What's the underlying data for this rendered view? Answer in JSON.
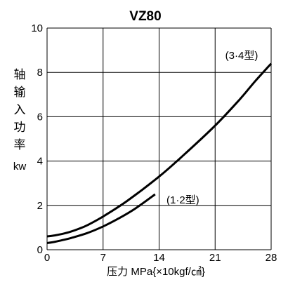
{
  "chart_data": {
    "type": "line",
    "title": "VZ80",
    "xlabel": "压力 MPa{×10kgf/㎠}",
    "ylabel_chars": [
      "轴",
      "输",
      "入",
      "功",
      "率"
    ],
    "ylabel_unit": "kw",
    "xlim": [
      0,
      28
    ],
    "ylim": [
      0,
      10
    ],
    "xticks": [
      0,
      7,
      14,
      21,
      28
    ],
    "yticks": [
      0,
      2,
      4,
      6,
      8,
      10
    ],
    "grid": true,
    "series": [
      {
        "name": "(3·4型)",
        "x": [
          0,
          1,
          2,
          3,
          4,
          5,
          7,
          10,
          14,
          17,
          21,
          24,
          26,
          28
        ],
        "y": [
          0.6,
          0.65,
          0.72,
          0.82,
          0.95,
          1.1,
          1.5,
          2.2,
          3.3,
          4.25,
          5.6,
          6.75,
          7.6,
          8.4
        ]
      },
      {
        "name": "(1·2型)",
        "x": [
          0,
          1,
          2,
          3,
          5,
          7,
          9,
          11,
          13.5
        ],
        "y": [
          0.3,
          0.36,
          0.44,
          0.53,
          0.75,
          1.05,
          1.42,
          1.85,
          2.5
        ]
      }
    ]
  }
}
